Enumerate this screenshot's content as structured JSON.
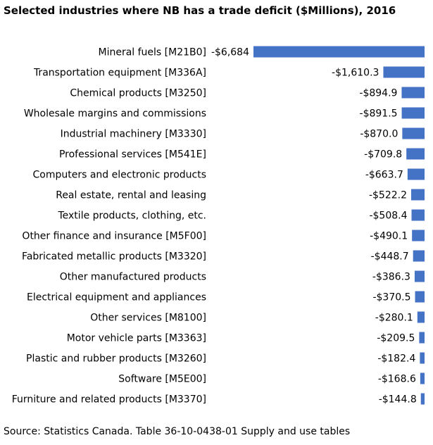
{
  "chart_data": {
    "type": "bar",
    "title": "Selected industries where NB has a trade deficit ($Millions), 2016",
    "categories": [
      "Mineral fuels  [M21B0]",
      "Transportation equipment  [M336A]",
      "Chemical products  [M3250]",
      "Wholesale margins and commissions",
      "Industrial machinery  [M3330]",
      "Professional services  [M541E]",
      "Computers and electronic products",
      "Real estate, rental and leasing",
      "Textile products, clothing, etc.",
      "Other finance and insurance  [M5F00]",
      "Fabricated metallic products  [M3320]",
      "Other manufactured products",
      "Electrical equipment and appliances",
      "Other services  [M8100]",
      "Motor vehicle parts  [M3363]",
      "Plastic and rubber products  [M3260]",
      "Software  [M5E00]",
      "Furniture and related products  [M3370]"
    ],
    "values": [
      -6684,
      -1610.3,
      -894.9,
      -891.5,
      -870.0,
      -709.8,
      -663.7,
      -522.2,
      -508.4,
      -490.1,
      -448.7,
      -386.3,
      -370.5,
      -280.1,
      -209.5,
      -182.4,
      -168.6,
      -144.8
    ],
    "data_labels": [
      "-$6,684",
      "-$1,610.3",
      "-$894.9",
      "-$891.5",
      "-$870.0",
      "-$709.8",
      "-$663.7",
      "-$522.2",
      "-$508.4",
      "-$490.1",
      "-$448.7",
      "-$386.3",
      "-$370.5",
      "-$280.1",
      "-$209.5",
      "-$182.4",
      "-$168.6",
      "-$144.8"
    ],
    "orientation": "horizontal",
    "bar_color": "#4472c4",
    "grid": false,
    "legend": "none",
    "xlim": [
      -6684,
      0
    ]
  },
  "source": "Source: Statistics Canada. Table 36-10-0438-01 Supply and use tables"
}
